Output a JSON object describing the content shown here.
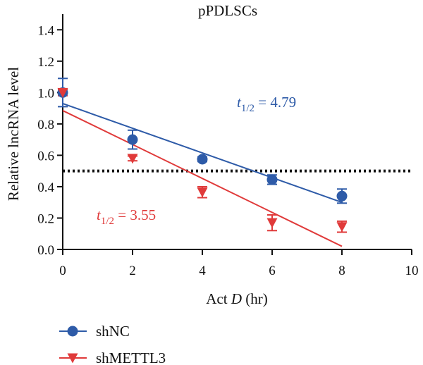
{
  "chart_data": {
    "type": "line",
    "title": "pPDLSCs",
    "xlabel": "Act D (hr)",
    "xlabel_main": "Act ",
    "xlabel_italic": "D",
    "xlabel_unit": " (hr)",
    "ylabel": "Relative lncRNA level",
    "xlim": [
      0,
      10
    ],
    "ylim": [
      0,
      1.5
    ],
    "x_ticks": [
      "0",
      "2",
      "4",
      "6",
      "8",
      "10"
    ],
    "y_ticks": [
      "0.0",
      "0.2",
      "0.4",
      "0.6",
      "0.8",
      "1.0",
      "1.2",
      "1.4"
    ],
    "reference_line": {
      "y": 0.5,
      "style": "dotted"
    },
    "legend_position": "bottom-left",
    "series": [
      {
        "name": "shNC",
        "marker": "circle",
        "color": "#2E5BA8",
        "x": [
          0,
          2,
          4,
          6,
          8
        ],
        "y": [
          1.0,
          0.7,
          0.575,
          0.445,
          0.34
        ],
        "error": [
          0.09,
          0.06,
          0.015,
          0.03,
          0.045
        ],
        "fit": {
          "x0": 0,
          "y0": 0.93,
          "x1": 8,
          "y1": 0.3
        },
        "half_life_prefix": "t",
        "half_life_sub": "1/2",
        "half_life_value": " = 4.79"
      },
      {
        "name": "shMETTL3",
        "marker": "triangle-down",
        "color": "#E03A3A",
        "x": [
          0,
          2,
          4,
          6,
          8
        ],
        "y": [
          1.0,
          0.58,
          0.365,
          0.17,
          0.145
        ],
        "error": [
          0.02,
          0.015,
          0.035,
          0.05,
          0.035
        ],
        "fit": {
          "x0": 0,
          "y0": 0.885,
          "x1": 8,
          "y1": 0.02
        },
        "half_life_prefix": "t",
        "half_life_sub": "1/2",
        "half_life_value": " = 3.55"
      }
    ]
  }
}
